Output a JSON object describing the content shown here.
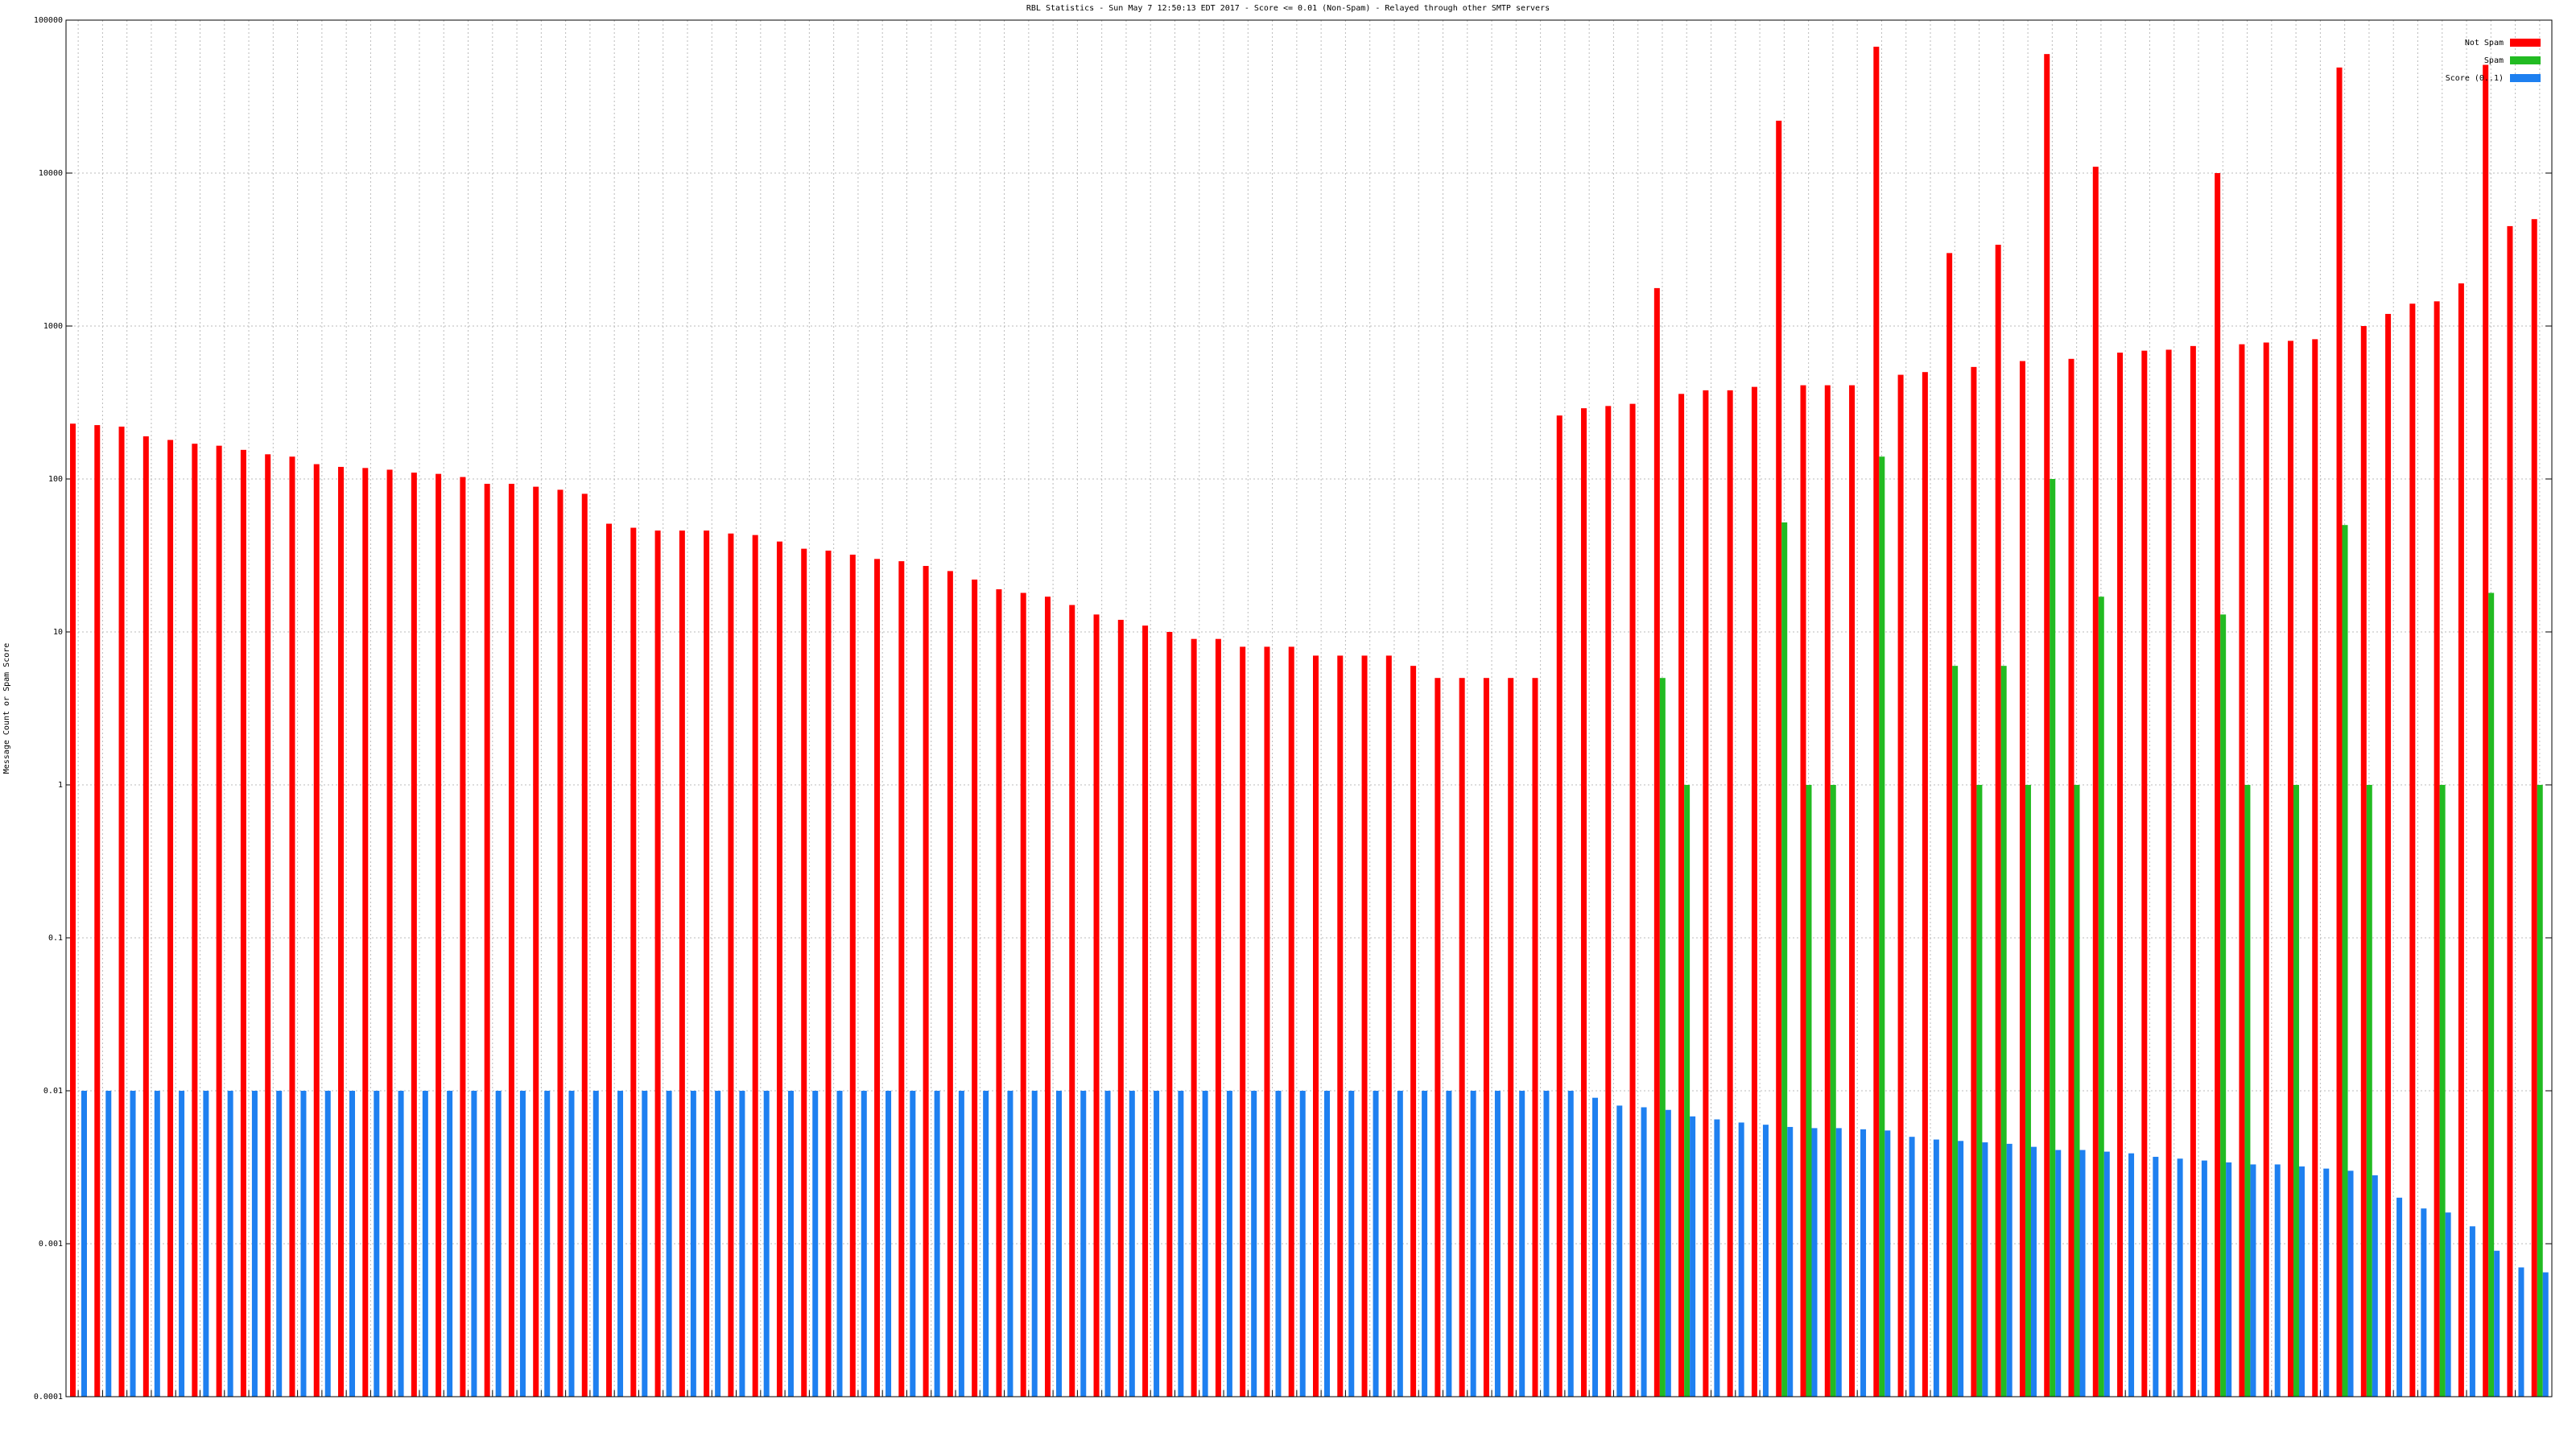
{
  "chart_data": {
    "type": "bar",
    "title": "RBL Statistics - Sun May  7 12:50:13 EDT 2017 - Score <= 0.01 (Non-Spam) - Relayed through other SMTP servers",
    "y_label": "Message Count or Spam Score",
    "log_scale": true,
    "grid": true,
    "legend": "top-right",
    "ylim": [
      0.0001,
      100000
    ],
    "yticks": [
      0.0001,
      0.001,
      0.01,
      0.1,
      1,
      10,
      100,
      1000,
      10000,
      100000
    ],
    "categories": [
      null,
      null,
      null,
      null,
      null,
      null,
      null,
      null,
      null,
      null,
      null,
      null,
      null,
      null,
      null,
      null,
      null,
      null,
      null,
      null,
      null,
      null,
      null,
      null,
      null,
      null,
      null,
      null,
      null,
      null,
      null,
      null,
      null,
      null,
      null,
      null,
      null,
      null,
      null,
      null,
      null,
      null,
      null,
      null,
      null,
      null,
      null,
      null,
      null,
      null,
      null,
      null,
      null,
      null,
      null,
      null,
      null,
      null,
      null,
      null,
      null,
      null,
      null,
      null,
      null,
      null,
      null,
      null,
      null,
      null,
      null,
      null,
      null,
      null,
      null,
      null,
      null,
      null,
      null,
      null,
      null,
      null,
      null,
      null,
      null,
      null,
      null,
      null,
      null,
      null,
      null,
      null,
      null,
      null,
      null,
      null,
      null,
      null,
      null,
      null,
      null,
      null
    ],
    "series": [
      {
        "name": "Not Spam",
        "color": "#ff0000",
        "values": [
          230,
          225,
          220,
          190,
          180,
          170,
          165,
          155,
          145,
          140,
          125,
          120,
          118,
          115,
          110,
          108,
          103,
          93,
          93,
          89,
          85,
          80,
          51,
          48,
          46,
          46,
          46,
          44,
          43,
          39,
          35,
          34,
          32,
          30,
          29,
          27,
          25,
          22,
          19,
          18,
          17,
          15,
          13,
          12,
          11,
          10,
          9,
          9,
          8,
          8,
          8,
          7,
          7,
          7,
          7,
          6,
          5,
          5,
          5,
          5,
          5,
          260,
          290,
          300,
          310,
          1770,
          360,
          380,
          380,
          400,
          22000,
          410,
          410,
          410,
          67000,
          480,
          500,
          3000,
          540,
          3400,
          590,
          60000,
          610,
          11000,
          670,
          690,
          700,
          740,
          10000,
          760,
          780,
          800,
          820,
          49000,
          1000,
          1200,
          1400,
          1450,
          1900,
          51000,
          4500,
          5000
        ]
      },
      {
        "name": "Spam",
        "color": "#22bb22",
        "values": [
          null,
          null,
          null,
          null,
          null,
          null,
          null,
          null,
          null,
          null,
          null,
          null,
          null,
          null,
          null,
          null,
          null,
          null,
          null,
          null,
          null,
          null,
          null,
          null,
          null,
          null,
          null,
          null,
          null,
          null,
          null,
          null,
          null,
          null,
          null,
          null,
          null,
          null,
          null,
          null,
          null,
          null,
          null,
          null,
          null,
          null,
          null,
          null,
          null,
          null,
          null,
          null,
          null,
          null,
          null,
          null,
          null,
          null,
          null,
          null,
          null,
          null,
          null,
          null,
          null,
          5,
          1,
          null,
          null,
          null,
          52,
          1,
          1,
          null,
          140,
          null,
          null,
          6,
          1,
          6,
          1,
          100,
          1,
          17,
          null,
          null,
          null,
          null,
          13,
          1,
          null,
          1,
          null,
          50,
          1,
          null,
          null,
          1,
          null,
          18,
          null,
          1
        ]
      },
      {
        "name": "Score (0..1)",
        "color": "#1e80f0",
        "values": [
          0.01,
          0.01,
          0.01,
          0.01,
          0.01,
          0.01,
          0.01,
          0.01,
          0.01,
          0.01,
          0.01,
          0.01,
          0.01,
          0.01,
          0.01,
          0.01,
          0.01,
          0.01,
          0.01,
          0.01,
          0.01,
          0.01,
          0.01,
          0.01,
          0.01,
          0.01,
          0.01,
          0.01,
          0.01,
          0.01,
          0.01,
          0.01,
          0.01,
          0.01,
          0.01,
          0.01,
          0.01,
          0.01,
          0.01,
          0.01,
          0.01,
          0.01,
          0.01,
          0.01,
          0.01,
          0.01,
          0.01,
          0.01,
          0.01,
          0.01,
          0.01,
          0.01,
          0.01,
          0.01,
          0.01,
          0.01,
          0.01,
          0.01,
          0.01,
          0.01,
          0.01,
          0.01,
          0.009,
          0.008,
          0.0078,
          0.0075,
          0.0068,
          0.0065,
          0.0062,
          0.006,
          0.0058,
          0.0057,
          0.0057,
          0.0056,
          0.0055,
          0.005,
          0.0048,
          0.0047,
          0.0046,
          0.0045,
          0.0043,
          0.0041,
          0.0041,
          0.004,
          0.0039,
          0.0037,
          0.0036,
          0.0035,
          0.0034,
          0.0033,
          0.0033,
          0.0032,
          0.0031,
          0.003,
          0.0028,
          0.002,
          0.0017,
          0.0016,
          0.0013,
          0.0009,
          0.0007,
          0.00065
        ]
      }
    ]
  }
}
